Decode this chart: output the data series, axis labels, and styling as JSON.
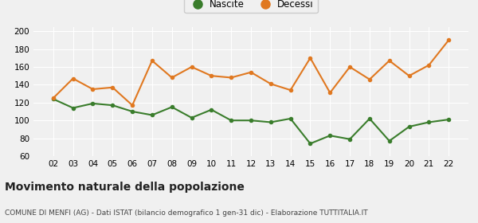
{
  "years": [
    2,
    3,
    4,
    5,
    6,
    7,
    8,
    9,
    10,
    11,
    12,
    13,
    14,
    15,
    16,
    17,
    18,
    19,
    20,
    21,
    22
  ],
  "nascite": [
    124,
    114,
    119,
    117,
    110,
    106,
    115,
    103,
    112,
    100,
    100,
    98,
    102,
    74,
    83,
    79,
    102,
    77,
    93,
    98,
    101
  ],
  "decessi": [
    125,
    147,
    135,
    137,
    117,
    167,
    148,
    160,
    150,
    148,
    154,
    141,
    134,
    170,
    131,
    160,
    146,
    167,
    150,
    162,
    190
  ],
  "nascite_color": "#3a7d2c",
  "decessi_color": "#e07820",
  "background_color": "#f0f0f0",
  "grid_color": "#ffffff",
  "ylim": [
    60,
    205
  ],
  "yticks": [
    60,
    80,
    100,
    120,
    140,
    160,
    180,
    200
  ],
  "title": "Movimento naturale della popolazione",
  "subtitle": "COMUNE DI MENFI (AG) - Dati ISTAT (bilancio demografico 1 gen-31 dic) - Elaborazione TUTTITALIA.IT",
  "legend_nascite": "Nascite",
  "legend_decessi": "Decessi",
  "marker_size": 4,
  "line_width": 1.5,
  "tick_fontsize": 7.5,
  "title_fontsize": 10,
  "subtitle_fontsize": 6.5,
  "legend_fontsize": 8.5
}
